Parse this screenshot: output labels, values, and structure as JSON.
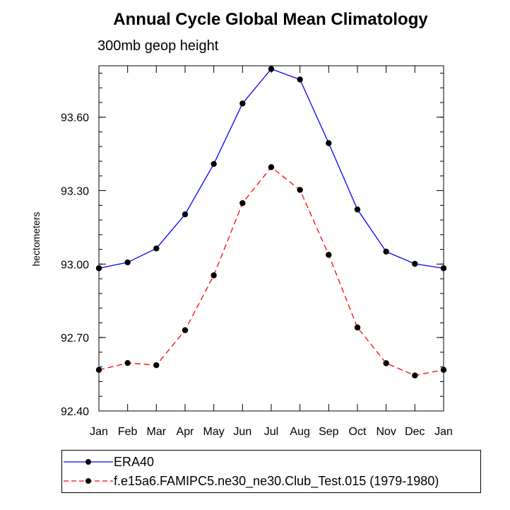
{
  "chart_data": {
    "type": "line",
    "title": "Annual Cycle Global Mean Climatology",
    "subtitle": "300mb geop height",
    "ylabel": "hectometers",
    "xlabel": "",
    "categories": [
      "Jan",
      "Feb",
      "Mar",
      "Apr",
      "May",
      "Jun",
      "Jul",
      "Aug",
      "Sep",
      "Oct",
      "Nov",
      "Dec",
      "Jan"
    ],
    "ylim": [
      92.4,
      93.81
    ],
    "yticks": [
      "92.40",
      "92.70",
      "93.00",
      "93.30",
      "93.60"
    ],
    "ytick_values": [
      92.4,
      92.7,
      93.0,
      93.3,
      93.6
    ],
    "series": [
      {
        "name": "ERA40",
        "color": "#0000ff",
        "style": "solid",
        "values": [
          92.983,
          93.007,
          93.064,
          93.203,
          93.409,
          93.656,
          93.797,
          93.754,
          93.494,
          93.223,
          93.051,
          93.001,
          92.983
        ]
      },
      {
        "name": "f.e15a6.FAMIPC5.ne30_ne30.Club_Test.015 (1979-1980)",
        "color": "#ff0000",
        "style": "dashed",
        "values": [
          92.568,
          92.596,
          92.587,
          92.73,
          92.954,
          93.249,
          93.396,
          93.303,
          93.038,
          92.741,
          92.595,
          92.545,
          92.568
        ]
      }
    ]
  }
}
